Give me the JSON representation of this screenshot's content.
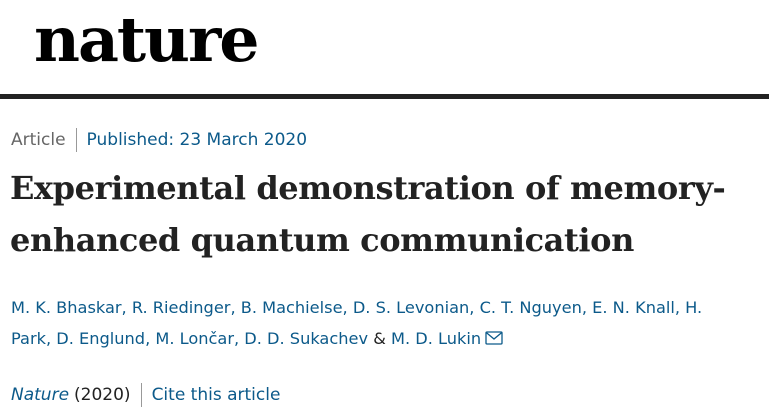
{
  "masthead": {
    "logo_text": "nature"
  },
  "article": {
    "type": "Article",
    "published": "Published: 23 March 2020",
    "title_line1": "Experimental demonstration of memory-",
    "title_line2": "enhanced quantum communication",
    "authors_line1": [
      "M. K. Bhaskar",
      ", ",
      "R. Riedinger",
      ", ",
      "B. Machielse",
      ", ",
      "D. S. Levonian",
      ", ",
      "C. T. Nguyen",
      ", ",
      "E. N. Knall",
      ", ",
      "H."
    ],
    "authors_line2_text": "Park, D. Englund, M. Lončar, D. D. Sukachev",
    "authors_amp": "&",
    "corresponding_author": "M. D. Lukin",
    "journal": "Nature",
    "year": "(2020)",
    "cite_label": "Cite this article"
  },
  "icons": {
    "mail": "envelope-icon"
  },
  "colors": {
    "link": "#0c5a8a",
    "text": "#222222",
    "rule": "#222222"
  }
}
